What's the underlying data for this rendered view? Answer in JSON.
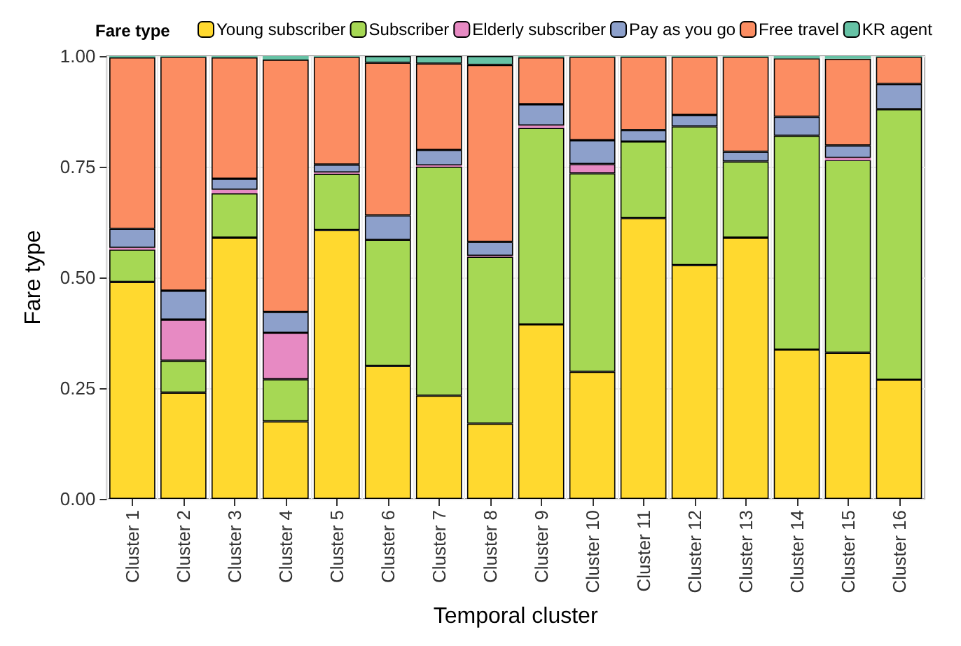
{
  "chart_data": {
    "type": "bar",
    "stacked": true,
    "xlabel": "Temporal cluster",
    "ylabel": "Fare type",
    "legend_title": "Fare type",
    "legend": "top",
    "grid": true,
    "categories": [
      "Cluster 1",
      "Cluster 2",
      "Cluster 3",
      "Cluster 4",
      "Cluster 5",
      "Cluster 6",
      "Cluster 7",
      "Cluster 8",
      "Cluster 9",
      "Cluster 10",
      "Cluster 11",
      "Cluster 12",
      "Cluster 13",
      "Cluster 14",
      "Cluster 15",
      "Cluster 16"
    ],
    "ylim": [
      0,
      1
    ],
    "yticks": [
      {
        "value": 0,
        "label": "0.00"
      },
      {
        "value": 0.25,
        "label": "0.25"
      },
      {
        "value": 0.5,
        "label": "0.50"
      },
      {
        "value": 0.75,
        "label": "0.75"
      },
      {
        "value": 1,
        "label": "1.00"
      }
    ],
    "series": [
      {
        "name": "Young subscriber",
        "color": "#ffd92f",
        "values": [
          0.49,
          0.24,
          0.59,
          0.175,
          0.607,
          0.3,
          0.233,
          0.17,
          0.394,
          0.287,
          0.634,
          0.528,
          0.59,
          0.337,
          0.33,
          0.269
        ]
      },
      {
        "name": "Subscriber",
        "color": "#a6d854",
        "values": [
          0.073,
          0.072,
          0.1,
          0.095,
          0.127,
          0.285,
          0.517,
          0.377,
          0.444,
          0.448,
          0.173,
          0.313,
          0.172,
          0.483,
          0.435,
          0.611
        ]
      },
      {
        "name": "Elderly subscriber",
        "color": "#e78ac3",
        "values": [
          0.004,
          0.093,
          0.008,
          0.105,
          0.003,
          0,
          0.003,
          0.002,
          0.005,
          0.021,
          0,
          0,
          0,
          0,
          0.005,
          0
        ]
      },
      {
        "name": "Pay as you go",
        "color": "#8da0cb",
        "values": [
          0.043,
          0.065,
          0.025,
          0.047,
          0.018,
          0.055,
          0.035,
          0.031,
          0.048,
          0.054,
          0.026,
          0.026,
          0.022,
          0.043,
          0.028,
          0.057
        ]
      },
      {
        "name": "Free travel",
        "color": "#fc8d62",
        "values": [
          0.387,
          0.528,
          0.274,
          0.57,
          0.243,
          0.345,
          0.195,
          0.4,
          0.106,
          0.188,
          0.165,
          0.131,
          0.214,
          0.132,
          0.196,
          0.061
        ]
      },
      {
        "name": "KR agent",
        "color": "#66c2a5",
        "values": [
          0.003,
          0.002,
          0.003,
          0.008,
          0.002,
          0.015,
          0.017,
          0.02,
          0.003,
          0.002,
          0.002,
          0.002,
          0.002,
          0.005,
          0.006,
          0.002
        ]
      }
    ]
  }
}
